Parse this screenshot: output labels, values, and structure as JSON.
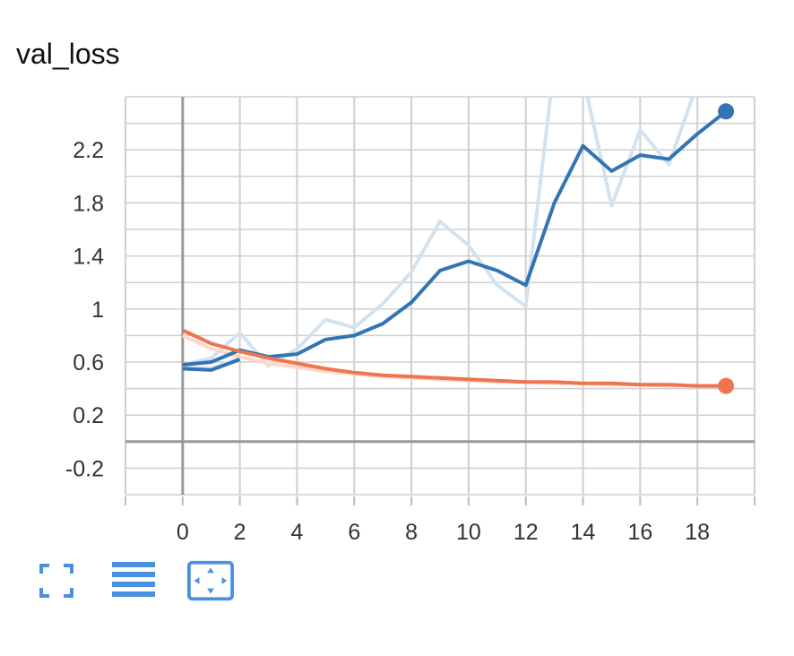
{
  "title": "val_loss",
  "colors": {
    "blue": "#3274b4",
    "blue_raw": "#d3e2f0",
    "orange": "#ef7550",
    "orange_raw": "#fbd9cc",
    "toolbar": "#4a90e2"
  },
  "toolbar": {
    "icons": [
      "expand-icon",
      "list-icon",
      "fit-domain-icon"
    ]
  },
  "chart_data": {
    "type": "line",
    "title": "val_loss",
    "xlabel": "",
    "ylabel": "",
    "xlim": [
      -2,
      20
    ],
    "ylim": [
      -0.4,
      2.6
    ],
    "xticks": [
      0,
      2,
      4,
      6,
      8,
      10,
      12,
      14,
      16,
      18
    ],
    "yticks": [
      -0.2,
      0.2,
      0.6,
      1,
      1.4,
      1.8,
      2.2
    ],
    "ytick_labels": [
      "-0.2",
      "0.2",
      "0.6",
      "1",
      "1.4",
      "1.8",
      "2.2"
    ],
    "grid": true,
    "legend": "none",
    "series": [
      {
        "color": "#3274b4",
        "raw_color": "#d3e2f0",
        "x": [
          0,
          1,
          2,
          3,
          4,
          5,
          6,
          7,
          8,
          9,
          10,
          11,
          12,
          13,
          14,
          15,
          16,
          17,
          18,
          19
        ],
        "raw": [
          0.58,
          0.63,
          0.82,
          0.57,
          0.7,
          0.92,
          0.86,
          1.04,
          1.28,
          1.66,
          1.48,
          1.18,
          1.02,
          2.85,
          2.75,
          1.78,
          2.35,
          2.09,
          2.7,
          2.78
        ],
        "smoothed": [
          0.58,
          0.6,
          0.69,
          0.64,
          0.66,
          0.77,
          0.8,
          0.89,
          1.05,
          1.29,
          1.36,
          1.29,
          1.18,
          1.8,
          2.23,
          2.04,
          2.16,
          2.13,
          2.32,
          2.49
        ]
      },
      {
        "color": "#3274b4",
        "raw_color": "#d3e2f0",
        "x": [
          0,
          1,
          2
        ],
        "raw": [
          0.56,
          0.55,
          0.63
        ],
        "smoothed": [
          0.55,
          0.54,
          0.62
        ]
      },
      {
        "color": "#ef7550",
        "raw_color": "#fbd9cc",
        "x": [
          0,
          1,
          2,
          3,
          4,
          5,
          6,
          7,
          8,
          9,
          10,
          11,
          12,
          13,
          14,
          15,
          16,
          17,
          18,
          19
        ],
        "raw": [
          0.8,
          0.7,
          0.64,
          0.59,
          0.56,
          0.53,
          0.51,
          0.49,
          0.48,
          0.47,
          0.46,
          0.45,
          0.45,
          0.44,
          0.44,
          0.43,
          0.43,
          0.42,
          0.42,
          0.42
        ],
        "smoothed": [
          0.84,
          0.74,
          0.68,
          0.63,
          0.59,
          0.55,
          0.52,
          0.5,
          0.49,
          0.48,
          0.47,
          0.46,
          0.45,
          0.45,
          0.44,
          0.44,
          0.43,
          0.43,
          0.42,
          0.42
        ]
      }
    ]
  }
}
